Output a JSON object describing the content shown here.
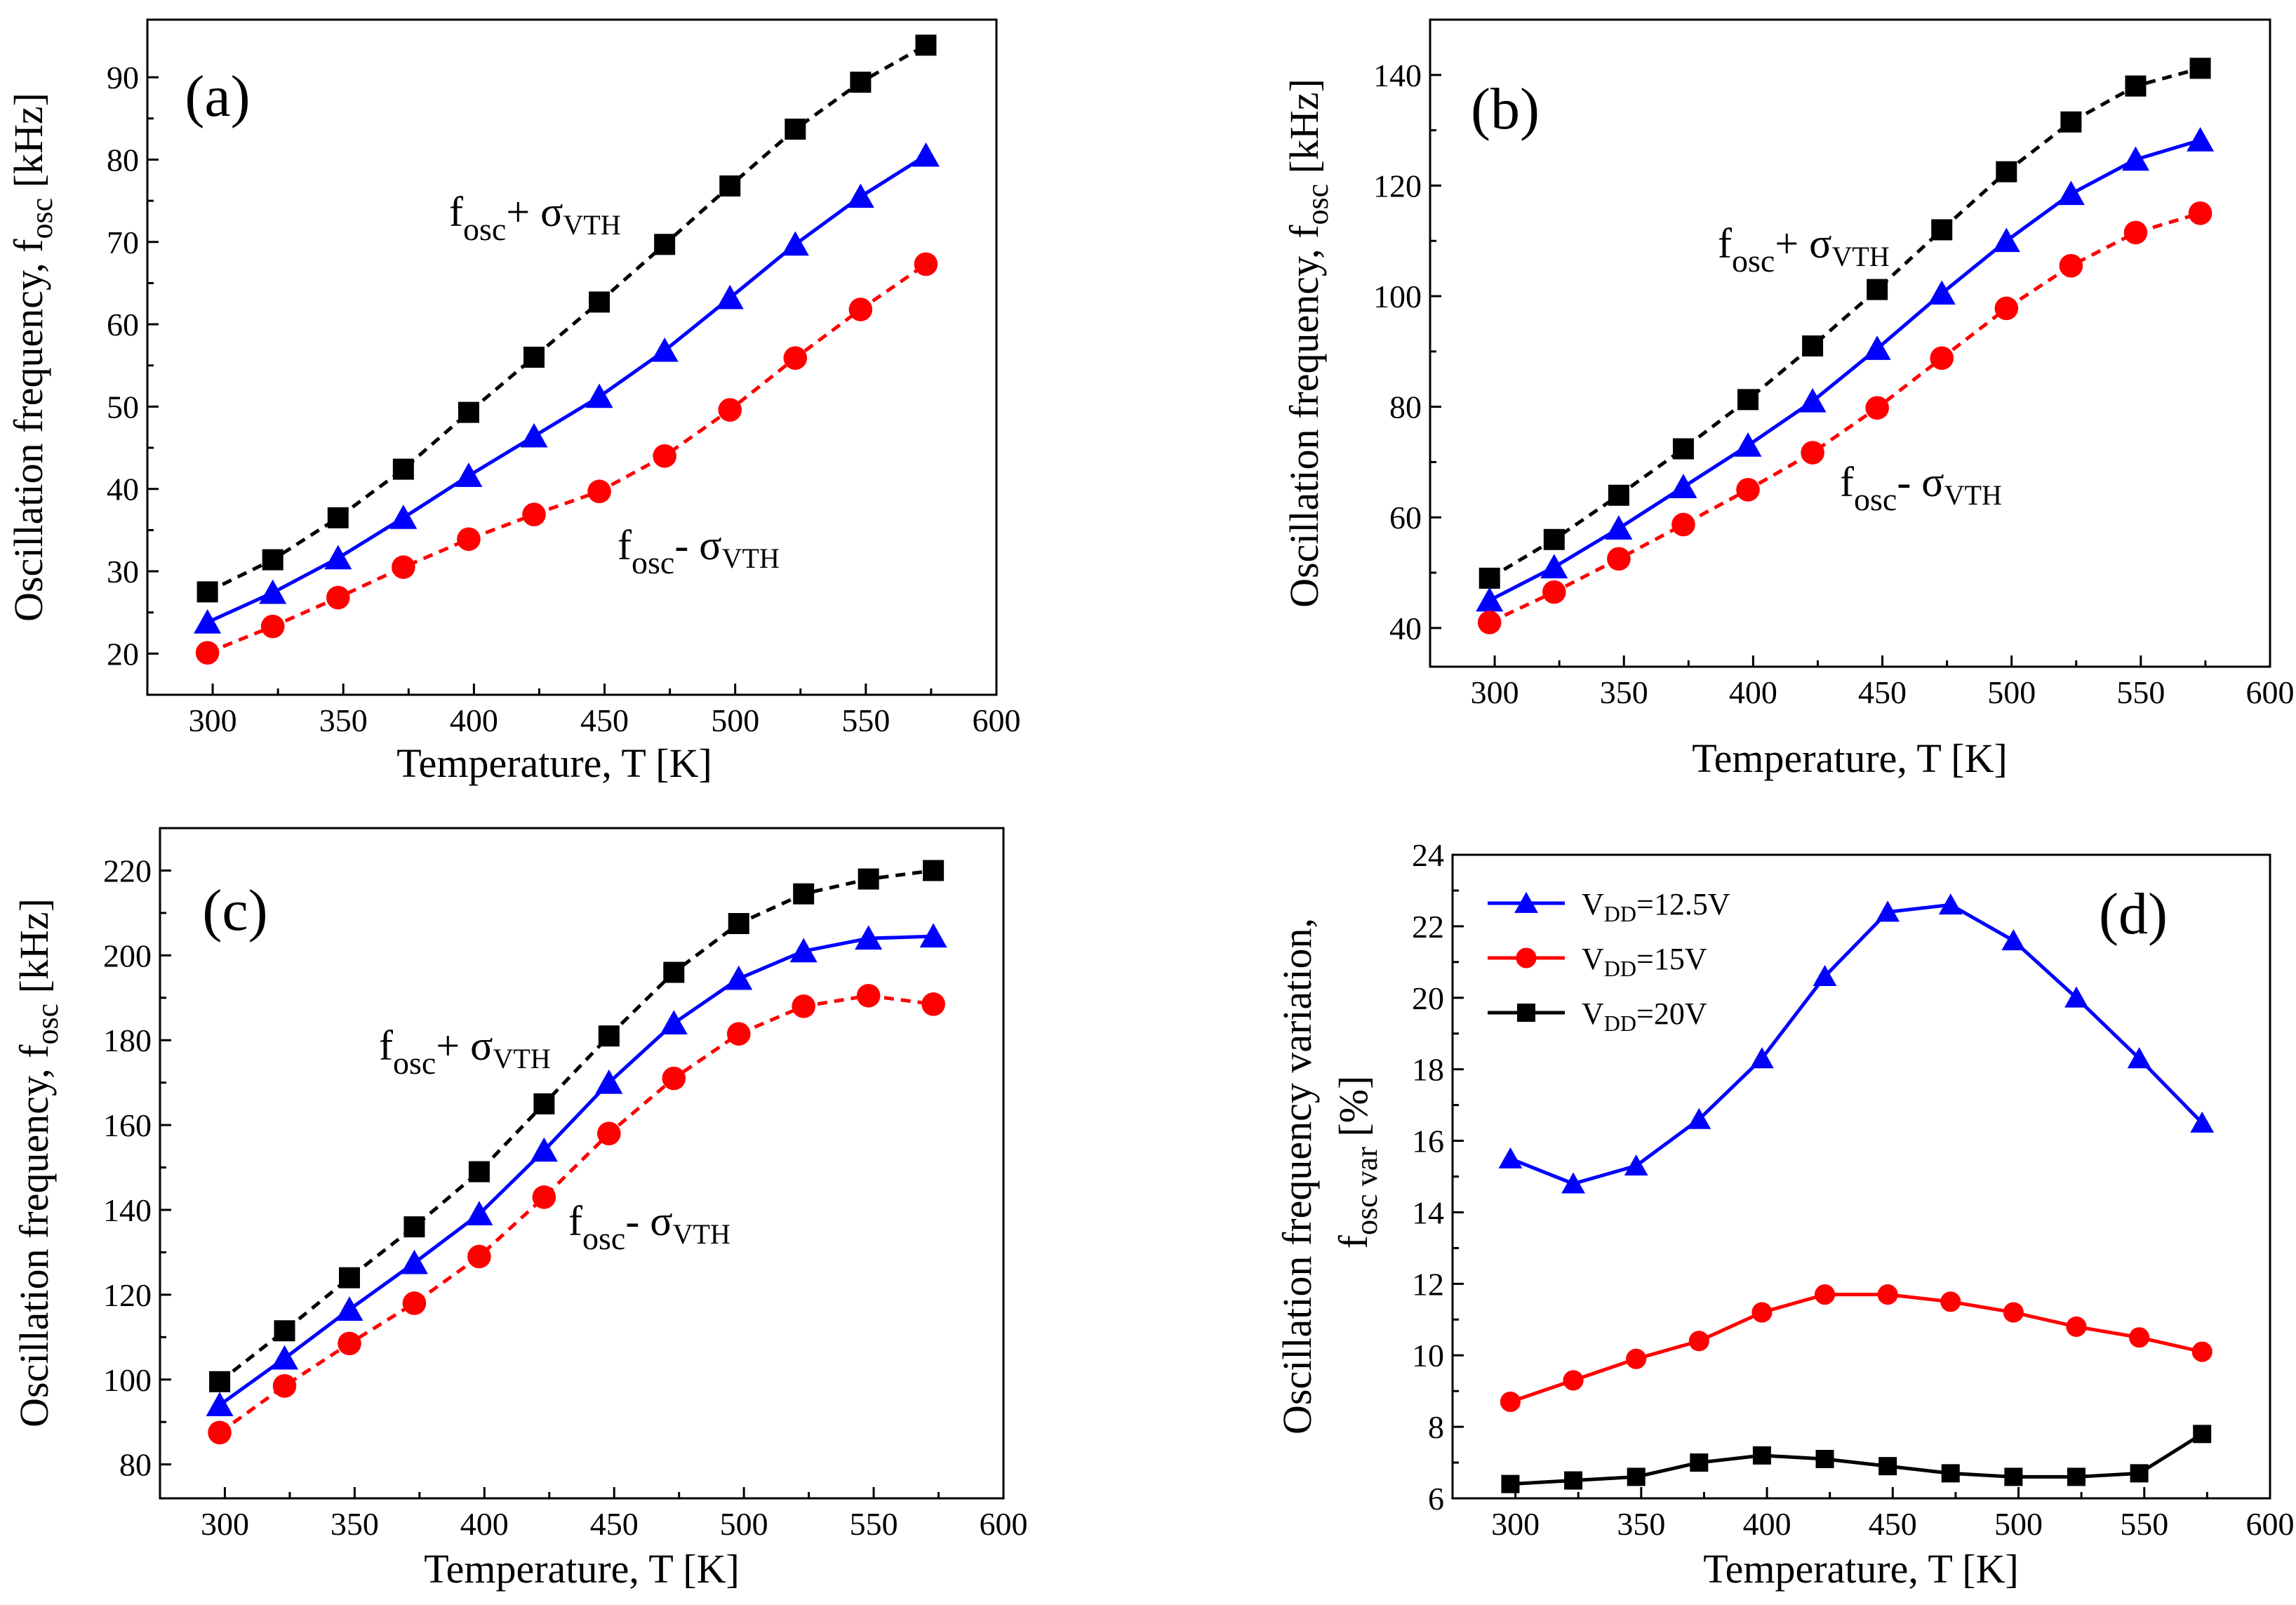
{
  "figure": {
    "colors": {
      "upper": "#000000",
      "nominal": "#0000ff",
      "lower": "#ff0000"
    },
    "x_axis_label": "Temperature, T [K]",
    "freq_axis_label_main": "Oscillation frequency, f",
    "freq_axis_label_sub": "osc",
    "freq_axis_label_unit": "[kHz]",
    "var_axis_label_line1": "Oscillation frequency variation,",
    "var_axis_label_line2_main": "f",
    "var_axis_label_line2_sub": "osc  var",
    "var_axis_label_line2_unit": "[%]",
    "annotation_plus": {
      "f": "f",
      "sub": "osc",
      "op": "+ σ",
      "sigma_sub": "VTH"
    },
    "annotation_minus": {
      "f": "f",
      "sub": "osc",
      "op": "- σ",
      "sigma_sub": "VTH"
    }
  },
  "chart_data": [
    {
      "id": "a",
      "type": "line",
      "panel_label": "(a)",
      "xlabel": "Temperature, T [K]",
      "ylabel": "Oscillation frequency, f_osc [kHz]",
      "xlim": [
        275,
        600
      ],
      "ylim": [
        15,
        97
      ],
      "xticks": [
        300,
        350,
        400,
        450,
        500,
        550,
        600
      ],
      "yticks": [
        20,
        30,
        40,
        50,
        60,
        70,
        80,
        90
      ],
      "x": [
        298,
        323,
        348,
        373,
        398,
        423,
        448,
        473,
        498,
        523,
        548,
        573
      ],
      "series": [
        {
          "name": "f_osc + σ_VTH",
          "role": "upper",
          "marker": "square",
          "dashed": true,
          "values": [
            27.5,
            31.4,
            36.5,
            42.4,
            49.3,
            56.0,
            62.7,
            69.7,
            76.8,
            83.7,
            89.4,
            93.9
          ]
        },
        {
          "name": "f_osc",
          "role": "nominal",
          "marker": "triangle",
          "dashed": false,
          "values": [
            23.8,
            27.4,
            31.6,
            36.5,
            41.6,
            46.4,
            51.2,
            56.8,
            63.2,
            69.7,
            75.5,
            80.5
          ]
        },
        {
          "name": "f_osc - σ_VTH",
          "role": "lower",
          "marker": "circle",
          "dashed": true,
          "values": [
            20.1,
            23.3,
            26.8,
            30.5,
            33.9,
            36.9,
            39.7,
            44.0,
            49.6,
            55.9,
            61.8,
            67.3
          ]
        }
      ]
    },
    {
      "id": "b",
      "type": "line",
      "panel_label": "(b)",
      "xlabel": "Temperature, T [K]",
      "ylabel": "Oscillation frequency, f_osc [kHz]",
      "xlim": [
        275,
        600
      ],
      "ylim": [
        33,
        150
      ],
      "xticks": [
        300,
        350,
        400,
        450,
        500,
        550,
        600
      ],
      "yticks": [
        40,
        60,
        80,
        100,
        120,
        140
      ],
      "x": [
        298,
        323,
        348,
        373,
        398,
        423,
        448,
        473,
        498,
        523,
        548,
        573
      ],
      "series": [
        {
          "name": "f_osc + σ_VTH",
          "role": "upper",
          "marker": "square",
          "dashed": true,
          "values": [
            49.0,
            56.0,
            64.0,
            72.4,
            81.3,
            91.0,
            101.2,
            112.0,
            122.5,
            131.5,
            138.0,
            141.2
          ]
        },
        {
          "name": "f_osc",
          "role": "nominal",
          "marker": "triangle",
          "dashed": false,
          "values": [
            45.0,
            51.0,
            58.0,
            65.5,
            73.0,
            81.0,
            90.5,
            100.5,
            110.0,
            118.5,
            124.7,
            128.2
          ]
        },
        {
          "name": "f_osc - σ_VTH",
          "role": "lower",
          "marker": "circle",
          "dashed": true,
          "values": [
            41.0,
            46.5,
            52.5,
            58.7,
            65.0,
            71.7,
            79.8,
            88.8,
            97.8,
            105.5,
            111.5,
            115.0
          ]
        }
      ]
    },
    {
      "id": "c",
      "type": "line",
      "panel_label": "(c)",
      "xlabel": "Temperature, T [K]",
      "ylabel": "Oscillation frequency, f_osc [kHz]",
      "xlim": [
        275,
        600
      ],
      "ylim": [
        72,
        230
      ],
      "xticks": [
        300,
        350,
        400,
        450,
        500,
        550,
        600
      ],
      "yticks": [
        80,
        100,
        120,
        140,
        160,
        180,
        200,
        220
      ],
      "x": [
        298,
        323,
        348,
        373,
        398,
        423,
        448,
        473,
        498,
        523,
        548,
        573
      ],
      "series": [
        {
          "name": "f_osc + σ_VTH",
          "role": "upper",
          "marker": "square",
          "dashed": true,
          "values": [
            99.5,
            111.5,
            124.0,
            136.0,
            149.0,
            165.0,
            181.0,
            196.0,
            207.5,
            214.5,
            218.0,
            220.0
          ]
        },
        {
          "name": "f_osc",
          "role": "nominal",
          "marker": "triangle",
          "dashed": false,
          "values": [
            94.0,
            105.0,
            116.5,
            127.5,
            139.0,
            154.0,
            170.0,
            184.0,
            194.5,
            201.0,
            204.0,
            204.5
          ]
        },
        {
          "name": "f_osc - σ_VTH",
          "role": "lower",
          "marker": "circle",
          "dashed": true,
          "values": [
            87.5,
            98.5,
            108.5,
            118.0,
            129.0,
            143.0,
            158.0,
            171.0,
            181.5,
            188.0,
            190.5,
            188.5
          ]
        }
      ]
    },
    {
      "id": "d",
      "type": "line",
      "panel_label": "(d)",
      "xlabel": "Temperature, T [K]",
      "ylabel": "Oscillation frequency variation, f_osc var [%]",
      "xlim": [
        275,
        600
      ],
      "ylim": [
        6,
        24
      ],
      "xticks": [
        300,
        350,
        400,
        450,
        500,
        550,
        600
      ],
      "yticks": [
        6,
        8,
        10,
        12,
        14,
        16,
        18,
        20,
        22,
        24
      ],
      "legend_position": "top-left",
      "x": [
        298,
        323,
        348,
        373,
        398,
        423,
        448,
        473,
        498,
        523,
        548,
        573
      ],
      "series": [
        {
          "name": "V_DD=12.5V",
          "legend_main": "V",
          "legend_sub": "DD",
          "legend_value": "=12.5V",
          "role": "nominal",
          "marker": "triangle",
          "dashed": false,
          "values": [
            15.5,
            14.8,
            15.3,
            16.6,
            18.3,
            20.6,
            22.4,
            22.6,
            21.6,
            20.0,
            18.3,
            16.5
          ]
        },
        {
          "name": "V_DD=15V",
          "legend_main": "V",
          "legend_sub": "DD",
          "legend_value": "=15V",
          "role": "lower",
          "marker": "circle",
          "dashed": false,
          "values": [
            8.7,
            9.3,
            9.9,
            10.4,
            11.2,
            11.7,
            11.7,
            11.5,
            11.2,
            10.8,
            10.5,
            10.1
          ]
        },
        {
          "name": "V_DD=20V",
          "legend_main": "V",
          "legend_sub": "DD",
          "legend_value": "=20V",
          "role": "upper",
          "marker": "square",
          "dashed": false,
          "values": [
            6.4,
            6.5,
            6.6,
            7.0,
            7.2,
            7.1,
            6.9,
            6.7,
            6.6,
            6.6,
            6.7,
            7.8
          ]
        }
      ]
    }
  ]
}
